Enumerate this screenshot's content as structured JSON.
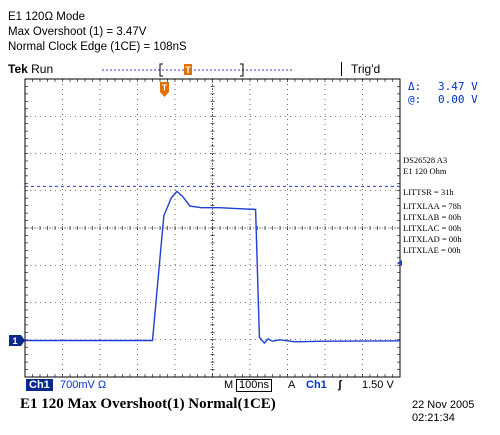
{
  "header": {
    "line1": "E1 120Ω Mode",
    "line2": "Max Overshoot (1) = 3.47V",
    "line3": "Normal Clock Edge (1CE) = 108nS"
  },
  "status": {
    "brand": "Tek",
    "run_state": "Run",
    "trigger_state": "Trig'd",
    "trigger_marker": "T"
  },
  "measurements": {
    "delta_label": "Δ:",
    "delta_value": "3.47 V",
    "at_label": "@:",
    "at_value": "0.00 V"
  },
  "side_panel": {
    "device": "DS26528  A3",
    "mode": "E1 120 Ohm",
    "registers": [
      "LITTSR = 31h",
      "LITXLAA = 78h",
      "LITXLAB = 00h",
      "LITXLAC = 00h",
      "LITXLAD = 00h",
      "LITXLAE = 00h"
    ]
  },
  "channel_marker": "1",
  "bottom_bar": {
    "channel": "Ch1",
    "volts_per_div": "700mV Ω",
    "timebase_prefix": "M",
    "time_per_div": "100ns",
    "trigger_prefix": "A",
    "trigger_channel": "Ch1",
    "trigger_slope": "ʃ",
    "trigger_level": "1.50 V"
  },
  "caption": "E1 120 Max Overshoot(1)  Normal(1CE)",
  "timestamp": {
    "date": "22 Nov 2005",
    "time": "02:21:34"
  },
  "colors": {
    "trace": "#1f3fd0",
    "cursor": "#2a3fd0",
    "accent": "#e07000",
    "grid": "#000000"
  },
  "chart_data": {
    "type": "line",
    "x_divisions": 10,
    "y_divisions": 8,
    "series": [
      {
        "x": [
          0,
          3.4,
          3.7,
          3.9,
          4.05,
          4.2,
          4.4,
          4.7,
          5.2,
          5.7,
          6.15,
          6.25,
          6.38,
          6.48,
          6.6,
          6.8,
          7.2,
          8.0,
          10
        ],
        "y": [
          0,
          0,
          3.8,
          4.35,
          4.55,
          4.4,
          4.1,
          4.05,
          4.05,
          4.02,
          4.0,
          0.1,
          -0.08,
          0.05,
          -0.02,
          0.02,
          -0.04,
          -0.02,
          -0.01
        ]
      }
    ],
    "cursor_level": 4.7,
    "ylim": [
      -4,
      4.5
    ]
  }
}
